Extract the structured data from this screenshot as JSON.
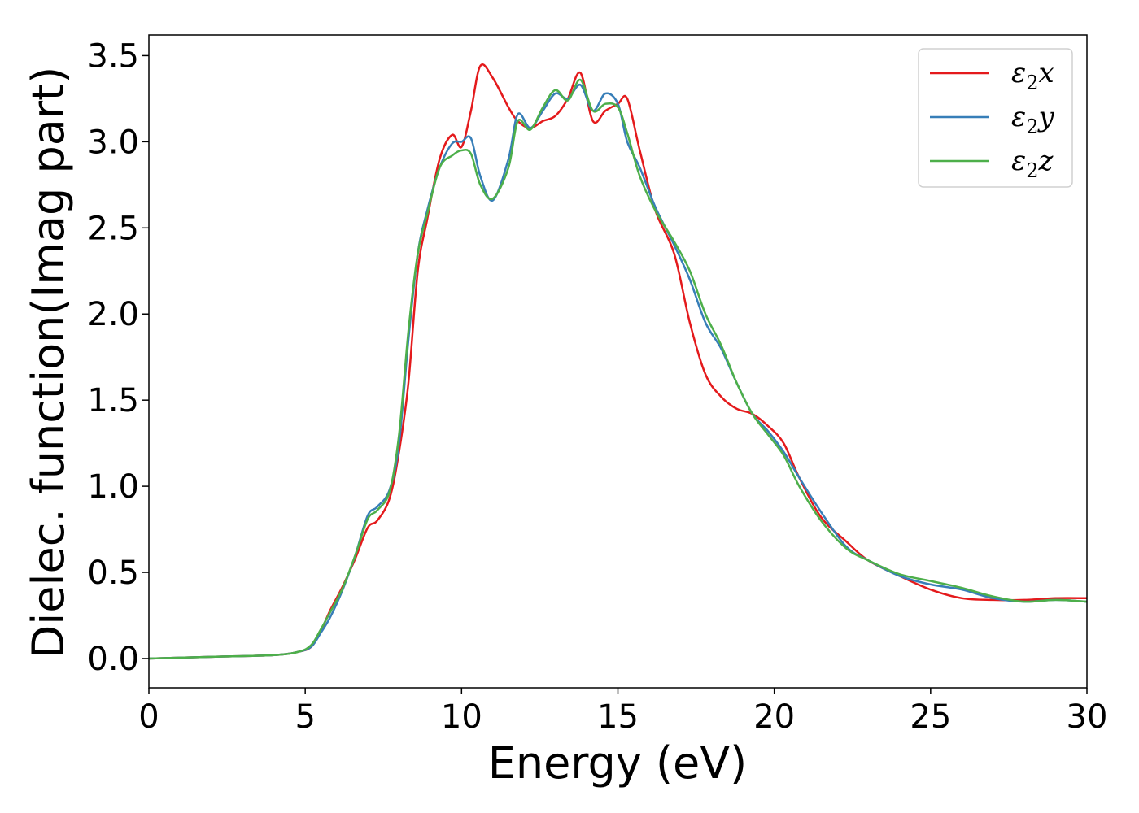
{
  "chart_data": {
    "type": "line",
    "xlabel": "Energy (eV)",
    "ylabel": "Dielec. function(Imag part)",
    "xlim": [
      0,
      30
    ],
    "ylim": [
      -0.17,
      3.62
    ],
    "xticks": [
      0,
      5,
      10,
      15,
      20,
      25,
      30
    ],
    "xtick_labels": [
      "0",
      "5",
      "10",
      "15",
      "20",
      "25",
      "30"
    ],
    "yticks": [
      0.0,
      0.5,
      1.0,
      1.5,
      2.0,
      2.5,
      3.0,
      3.5
    ],
    "ytick_labels": [
      "0.0",
      "0.5",
      "1.0",
      "1.5",
      "2.0",
      "2.5",
      "3.0",
      "3.5"
    ],
    "grid": false,
    "legend": "top-right",
    "series": [
      {
        "name": "ε2x",
        "legend_main": "ε",
        "legend_sub": "2",
        "legend_tail": "x",
        "color": "#e41a1c",
        "x": [
          0,
          2,
          4,
          4.8,
          5.2,
          5.5,
          5.8,
          6.2,
          6.6,
          7.0,
          7.3,
          7.7,
          8.0,
          8.3,
          8.6,
          8.9,
          9.3,
          9.7,
          10.0,
          10.3,
          10.6,
          11.0,
          11.5,
          11.8,
          12.2,
          12.6,
          13.0,
          13.4,
          13.8,
          14.2,
          14.6,
          15.0,
          15.3,
          15.7,
          16.2,
          16.8,
          17.3,
          17.8,
          18.3,
          18.8,
          19.3,
          19.8,
          20.3,
          20.8,
          21.5,
          22.3,
          23.0,
          24.0,
          25.0,
          26.0,
          27.0,
          28.0,
          29.0,
          30.0
        ],
        "y": [
          0.0,
          0.01,
          0.02,
          0.04,
          0.07,
          0.16,
          0.28,
          0.42,
          0.58,
          0.76,
          0.8,
          0.93,
          1.2,
          1.6,
          2.25,
          2.55,
          2.9,
          3.04,
          2.97,
          3.18,
          3.44,
          3.37,
          3.2,
          3.12,
          3.08,
          3.12,
          3.15,
          3.25,
          3.4,
          3.12,
          3.18,
          3.22,
          3.25,
          2.95,
          2.6,
          2.35,
          1.95,
          1.65,
          1.52,
          1.45,
          1.42,
          1.35,
          1.25,
          1.05,
          0.82,
          0.68,
          0.57,
          0.48,
          0.4,
          0.35,
          0.34,
          0.34,
          0.35,
          0.35
        ]
      },
      {
        "name": "ε2y",
        "legend_main": "ε",
        "legend_sub": "2",
        "legend_tail": "y",
        "color": "#377eb8",
        "x": [
          0,
          2,
          4,
          4.8,
          5.2,
          5.5,
          5.8,
          6.2,
          6.6,
          7.0,
          7.3,
          7.7,
          8.0,
          8.3,
          8.6,
          8.9,
          9.3,
          9.7,
          10.0,
          10.3,
          10.6,
          11.0,
          11.5,
          11.8,
          12.2,
          12.6,
          13.0,
          13.4,
          13.8,
          14.2,
          14.6,
          15.0,
          15.3,
          15.7,
          16.2,
          16.8,
          17.3,
          17.8,
          18.3,
          18.8,
          19.3,
          19.8,
          20.3,
          20.8,
          21.5,
          22.3,
          23.0,
          24.0,
          25.0,
          26.0,
          27.0,
          28.0,
          29.0,
          30.0
        ],
        "y": [
          0.0,
          0.01,
          0.02,
          0.04,
          0.07,
          0.15,
          0.24,
          0.4,
          0.6,
          0.83,
          0.88,
          0.98,
          1.25,
          1.85,
          2.35,
          2.6,
          2.85,
          2.99,
          3.0,
          3.02,
          2.8,
          2.66,
          2.9,
          3.16,
          3.08,
          3.18,
          3.28,
          3.25,
          3.33,
          3.18,
          3.28,
          3.22,
          3.0,
          2.85,
          2.62,
          2.4,
          2.2,
          1.95,
          1.8,
          1.6,
          1.42,
          1.32,
          1.2,
          1.05,
          0.85,
          0.65,
          0.57,
          0.48,
          0.43,
          0.4,
          0.35,
          0.33,
          0.34,
          0.33
        ]
      },
      {
        "name": "ε2z",
        "legend_main": "ε",
        "legend_sub": "2",
        "legend_tail": "z",
        "color": "#4daf4a",
        "x": [
          0,
          2,
          4,
          4.8,
          5.2,
          5.5,
          5.8,
          6.2,
          6.6,
          7.0,
          7.3,
          7.7,
          8.0,
          8.3,
          8.6,
          8.9,
          9.3,
          9.7,
          10.0,
          10.3,
          10.6,
          11.0,
          11.5,
          11.8,
          12.2,
          12.6,
          13.0,
          13.4,
          13.8,
          14.2,
          14.6,
          15.0,
          15.3,
          15.7,
          16.2,
          16.8,
          17.3,
          17.8,
          18.3,
          18.8,
          19.3,
          19.8,
          20.3,
          20.8,
          21.5,
          22.3,
          23.0,
          24.0,
          25.0,
          26.0,
          27.0,
          28.0,
          29.0,
          30.0
        ],
        "y": [
          0.0,
          0.01,
          0.02,
          0.04,
          0.08,
          0.17,
          0.27,
          0.41,
          0.6,
          0.81,
          0.86,
          0.97,
          1.3,
          1.9,
          2.35,
          2.58,
          2.85,
          2.92,
          2.95,
          2.93,
          2.75,
          2.67,
          2.85,
          3.12,
          3.07,
          3.2,
          3.3,
          3.24,
          3.36,
          3.18,
          3.22,
          3.2,
          3.05,
          2.8,
          2.6,
          2.42,
          2.25,
          2.0,
          1.82,
          1.6,
          1.42,
          1.3,
          1.18,
          1.0,
          0.8,
          0.64,
          0.57,
          0.49,
          0.45,
          0.41,
          0.36,
          0.33,
          0.34,
          0.33
        ]
      }
    ]
  }
}
